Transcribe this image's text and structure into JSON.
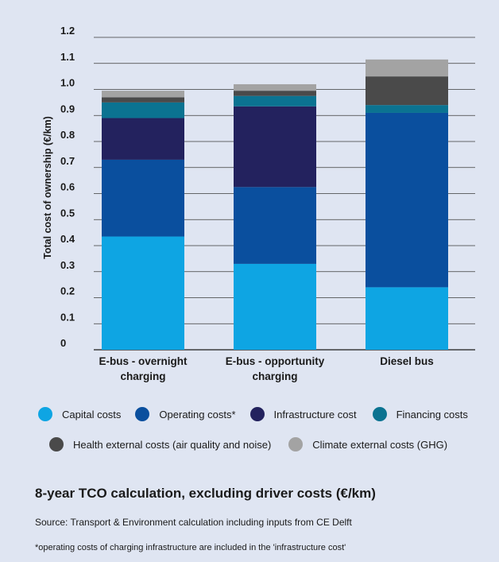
{
  "chart_data": {
    "type": "bar",
    "stacked": true,
    "categories": [
      "E-bus - overnight charging",
      "E-bus - opportunity charging",
      "Diesel bus"
    ],
    "category_lines": [
      [
        "E-bus - overnight",
        "charging"
      ],
      [
        "E-bus - opportunity",
        "charging"
      ],
      [
        "Diesel bus"
      ]
    ],
    "series": [
      {
        "name": "Capital costs",
        "color": "#0ea5e3",
        "values": [
          0.435,
          0.33,
          0.24
        ]
      },
      {
        "name": "Operating costs*",
        "color": "#0a4f9e",
        "values": [
          0.295,
          0.295,
          0.67
        ]
      },
      {
        "name": "Infrastructure cost",
        "color": "#23225e",
        "values": [
          0.16,
          0.31,
          0.0
        ]
      },
      {
        "name": "Financing costs",
        "color": "#0b7391",
        "values": [
          0.06,
          0.04,
          0.03
        ]
      },
      {
        "name": "Health external costs (air quality and noise)",
        "color": "#4a4a4a",
        "values": [
          0.02,
          0.02,
          0.11
        ]
      },
      {
        "name": "Climate external costs (GHG)",
        "color": "#a3a3a3",
        "values": [
          0.025,
          0.025,
          0.065
        ]
      }
    ],
    "ylabel": "Total cost of ownership (€/km)",
    "ylim": [
      0,
      1.2
    ],
    "yticks": [
      0,
      0.1,
      0.2,
      0.3,
      0.4,
      0.5,
      0.6,
      0.7,
      0.8,
      0.9,
      1.0,
      1.1,
      1.2
    ],
    "ytick_labels": [
      "0",
      "0.1",
      "0.2",
      "0.3",
      "0.4",
      "0.5",
      "0.6",
      "0.7",
      "0.8",
      "0.9",
      "1.0",
      "1.1",
      "1.2"
    ],
    "grid": true,
    "legend_position": "bottom"
  },
  "legend_rows": [
    [
      0,
      1,
      2,
      3
    ],
    [
      4,
      5
    ]
  ],
  "footer": {
    "title": "8-year TCO calculation, excluding driver costs (€/km)",
    "source": "Source: Transport & Environment calculation including inputs from CE Delft",
    "note": "*operating costs of charging infrastructure are included in the 'infrastructure cost'"
  }
}
